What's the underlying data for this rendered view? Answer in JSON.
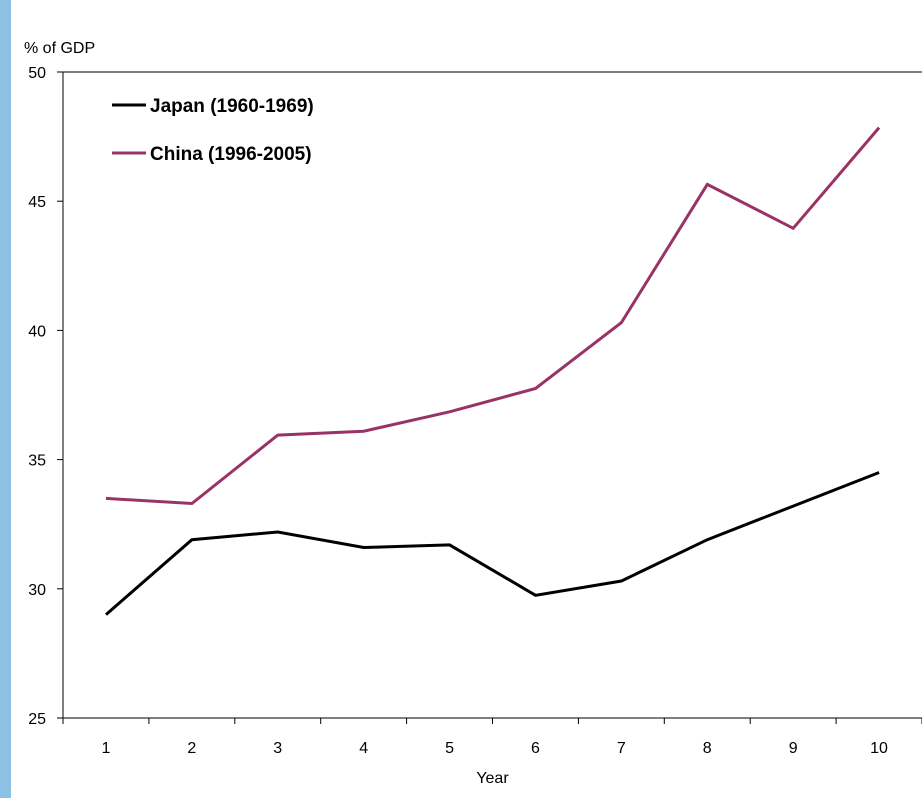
{
  "chart_data": {
    "type": "line",
    "ylabel": "% of GDP",
    "xlabel": "Year",
    "x": [
      1,
      2,
      3,
      4,
      5,
      6,
      7,
      8,
      9,
      10
    ],
    "x_tick_labels": [
      "1",
      "2",
      "3",
      "4",
      "5",
      "6",
      "7",
      "8",
      "9",
      "10"
    ],
    "ylim": [
      25,
      50
    ],
    "y_ticks": [
      25,
      30,
      35,
      40,
      45,
      50
    ],
    "y_tick_labels": [
      "25",
      "30",
      "35",
      "40",
      "45",
      "50"
    ],
    "grid": false,
    "legend_position": "top-left",
    "series": [
      {
        "name": "Japan (1960-1969)",
        "color": "#000000",
        "values": [
          29.0,
          31.9,
          32.2,
          31.6,
          31.7,
          29.75,
          30.3,
          31.9,
          33.2,
          34.5
        ]
      },
      {
        "name": "China (1996-2005)",
        "color": "#993366",
        "values": [
          33.5,
          33.3,
          35.95,
          36.1,
          36.85,
          37.75,
          40.3,
          45.65,
          43.95,
          47.85
        ]
      }
    ]
  }
}
